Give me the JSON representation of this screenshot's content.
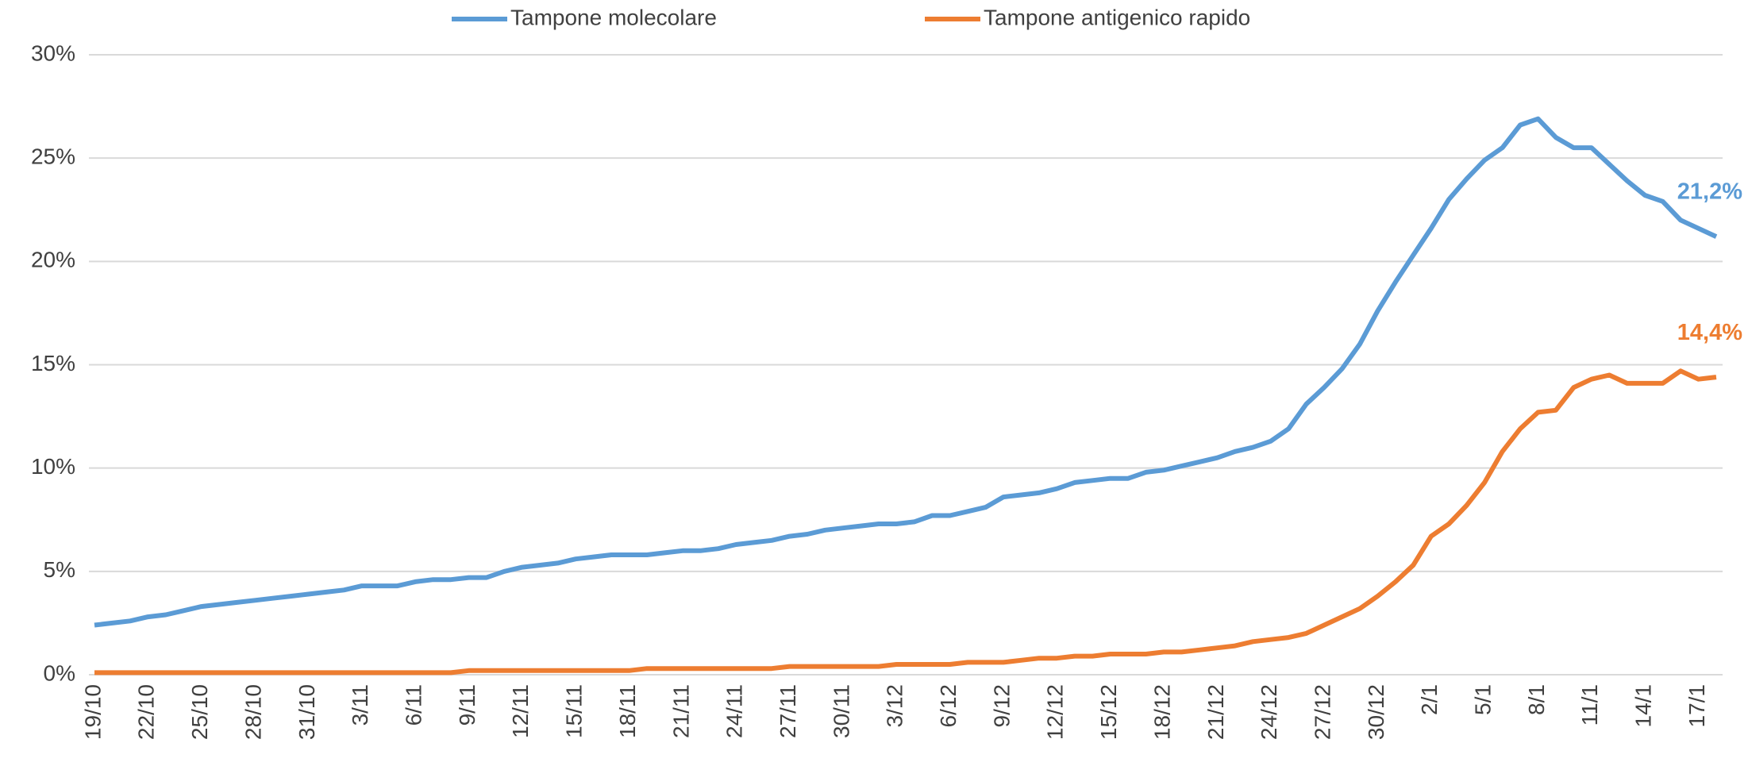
{
  "chart_data": {
    "type": "line",
    "categories": [
      "19/10",
      null,
      null,
      "22/10",
      null,
      null,
      "25/10",
      null,
      null,
      "28/10",
      null,
      null,
      "31/10",
      null,
      null,
      "3/11",
      null,
      null,
      "6/11",
      null,
      null,
      "9/11",
      null,
      null,
      "12/11",
      null,
      null,
      "15/11",
      null,
      null,
      "18/11",
      null,
      null,
      "21/11",
      null,
      null,
      "24/11",
      null,
      null,
      "27/11",
      null,
      null,
      "30/11",
      null,
      null,
      "3/12",
      null,
      null,
      "6/12",
      null,
      null,
      "9/12",
      null,
      null,
      "12/12",
      null,
      null,
      "15/12",
      null,
      null,
      "18/12",
      null,
      null,
      "21/12",
      null,
      null,
      "24/12",
      null,
      null,
      "27/12",
      null,
      null,
      "30/12",
      null,
      null,
      "2/1",
      null,
      null,
      "5/1",
      null,
      null,
      "8/1",
      null,
      null,
      "11/1",
      null,
      null,
      "14/1",
      null,
      null,
      "17/1",
      null
    ],
    "series": [
      {
        "name": "Tampone molecolare",
        "color": "#5b9bd5",
        "values": [
          2.4,
          2.5,
          2.6,
          2.8,
          2.9,
          3.1,
          3.3,
          3.4,
          3.5,
          3.6,
          3.7,
          3.8,
          3.9,
          4.0,
          4.1,
          4.3,
          4.3,
          4.3,
          4.5,
          4.6,
          4.6,
          4.7,
          4.7,
          5.0,
          5.2,
          5.3,
          5.4,
          5.6,
          5.7,
          5.8,
          5.8,
          5.8,
          5.9,
          6.0,
          6.0,
          6.1,
          6.3,
          6.4,
          6.5,
          6.7,
          6.8,
          7.0,
          7.1,
          7.2,
          7.3,
          7.3,
          7.4,
          7.7,
          7.7,
          7.9,
          8.1,
          8.6,
          8.7,
          8.8,
          9.0,
          9.3,
          9.4,
          9.5,
          9.5,
          9.8,
          9.9,
          10.1,
          10.3,
          10.5,
          10.8,
          11.0,
          11.3,
          11.9,
          13.1,
          13.9,
          14.8,
          16.0,
          17.6,
          19.0,
          20.3,
          21.6,
          23.0,
          24.0,
          24.9,
          25.5,
          26.6,
          26.9,
          26.0,
          25.5,
          25.5,
          24.7,
          23.9,
          23.2,
          22.9,
          22.0,
          21.6,
          21.2
        ],
        "value_labels": [
          null,
          null,
          null,
          null,
          null,
          null,
          null,
          null,
          null,
          null,
          null,
          null,
          null,
          null,
          null,
          null,
          null,
          null,
          null,
          null,
          null,
          null,
          null,
          null,
          null,
          null,
          null,
          null,
          null,
          null,
          null,
          null,
          null,
          null,
          null,
          null,
          null,
          null,
          null,
          null,
          null,
          null,
          null,
          null,
          null,
          null,
          null,
          null,
          null,
          null,
          null,
          null,
          null,
          null,
          null,
          null,
          null,
          null,
          null,
          null,
          null,
          null,
          null,
          null,
          null,
          null,
          null,
          null,
          null,
          null,
          null,
          null,
          null,
          null,
          null,
          null,
          null,
          null,
          null,
          null,
          null,
          null,
          null,
          null,
          null,
          null,
          null,
          null,
          null,
          null,
          null,
          "21,2%"
        ]
      },
      {
        "name": "Tampone antigenico rapido",
        "color": "#ed7d31",
        "values": [
          0.1,
          0.1,
          0.1,
          0.1,
          0.1,
          0.1,
          0.1,
          0.1,
          0.1,
          0.1,
          0.1,
          0.1,
          0.1,
          0.1,
          0.1,
          0.1,
          0.1,
          0.1,
          0.1,
          0.1,
          0.1,
          0.2,
          0.2,
          0.2,
          0.2,
          0.2,
          0.2,
          0.2,
          0.2,
          0.2,
          0.2,
          0.3,
          0.3,
          0.3,
          0.3,
          0.3,
          0.3,
          0.3,
          0.3,
          0.4,
          0.4,
          0.4,
          0.4,
          0.4,
          0.4,
          0.5,
          0.5,
          0.5,
          0.5,
          0.6,
          0.6,
          0.6,
          0.7,
          0.8,
          0.8,
          0.9,
          0.9,
          1.0,
          1.0,
          1.0,
          1.1,
          1.1,
          1.2,
          1.3,
          1.4,
          1.6,
          1.7,
          1.8,
          2.0,
          2.4,
          2.8,
          3.2,
          3.8,
          4.5,
          5.3,
          6.7,
          7.3,
          8.2,
          9.3,
          10.8,
          11.9,
          12.7,
          12.8,
          13.9,
          14.3,
          14.5,
          14.1,
          14.1,
          14.1,
          14.7,
          14.3,
          14.4
        ],
        "value_labels": [
          null,
          null,
          null,
          null,
          null,
          null,
          null,
          null,
          null,
          null,
          null,
          null,
          null,
          null,
          null,
          null,
          null,
          null,
          null,
          null,
          null,
          null,
          null,
          null,
          null,
          null,
          null,
          null,
          null,
          null,
          null,
          null,
          null,
          null,
          null,
          null,
          null,
          null,
          null,
          null,
          null,
          null,
          null,
          null,
          null,
          null,
          null,
          null,
          null,
          null,
          null,
          null,
          null,
          null,
          null,
          null,
          null,
          null,
          null,
          null,
          null,
          null,
          null,
          null,
          null,
          null,
          null,
          null,
          null,
          null,
          null,
          null,
          null,
          null,
          null,
          null,
          null,
          null,
          null,
          null,
          null,
          null,
          null,
          null,
          null,
          null,
          null,
          null,
          null,
          null,
          null,
          "14,4%"
        ]
      }
    ],
    "ylim": [
      0,
      30
    ],
    "yticks": [
      {
        "value": 0,
        "label": "0%"
      },
      {
        "value": 5,
        "label": "5%"
      },
      {
        "value": 10,
        "label": "10%"
      },
      {
        "value": 15,
        "label": "15%"
      },
      {
        "value": 20,
        "label": "20%"
      },
      {
        "value": 25,
        "label": "25%"
      },
      {
        "value": 30,
        "label": "30%"
      }
    ],
    "grid": true,
    "legend": "top"
  }
}
